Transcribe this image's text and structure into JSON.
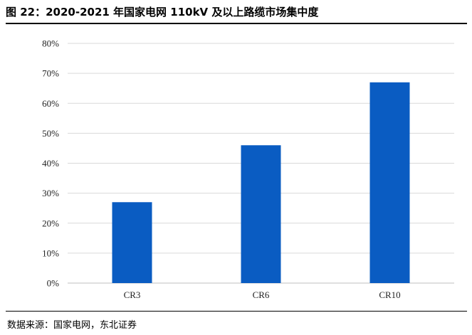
{
  "title": "图 22：2020-2021 年国家电网 110kV 及以上路缆市场集中度",
  "source": "数据来源：国家电网，东北证券",
  "colors": {
    "bar": "#0a5cc2",
    "grid": "#d9d9d9",
    "axis": "#bfbfbf"
  },
  "chart_data": {
    "type": "bar",
    "categories": [
      "CR3",
      "CR6",
      "CR10"
    ],
    "values": [
      0.27,
      0.46,
      0.67
    ],
    "ylim": [
      0,
      0.8
    ],
    "yticks": [
      0,
      0.1,
      0.2,
      0.3,
      0.4,
      0.5,
      0.6,
      0.7,
      0.8
    ],
    "ytick_labels": [
      "0%",
      "10%",
      "20%",
      "30%",
      "40%",
      "50%",
      "60%",
      "70%",
      "80%"
    ],
    "grid": true,
    "title": "",
    "xlabel": "",
    "ylabel": ""
  }
}
